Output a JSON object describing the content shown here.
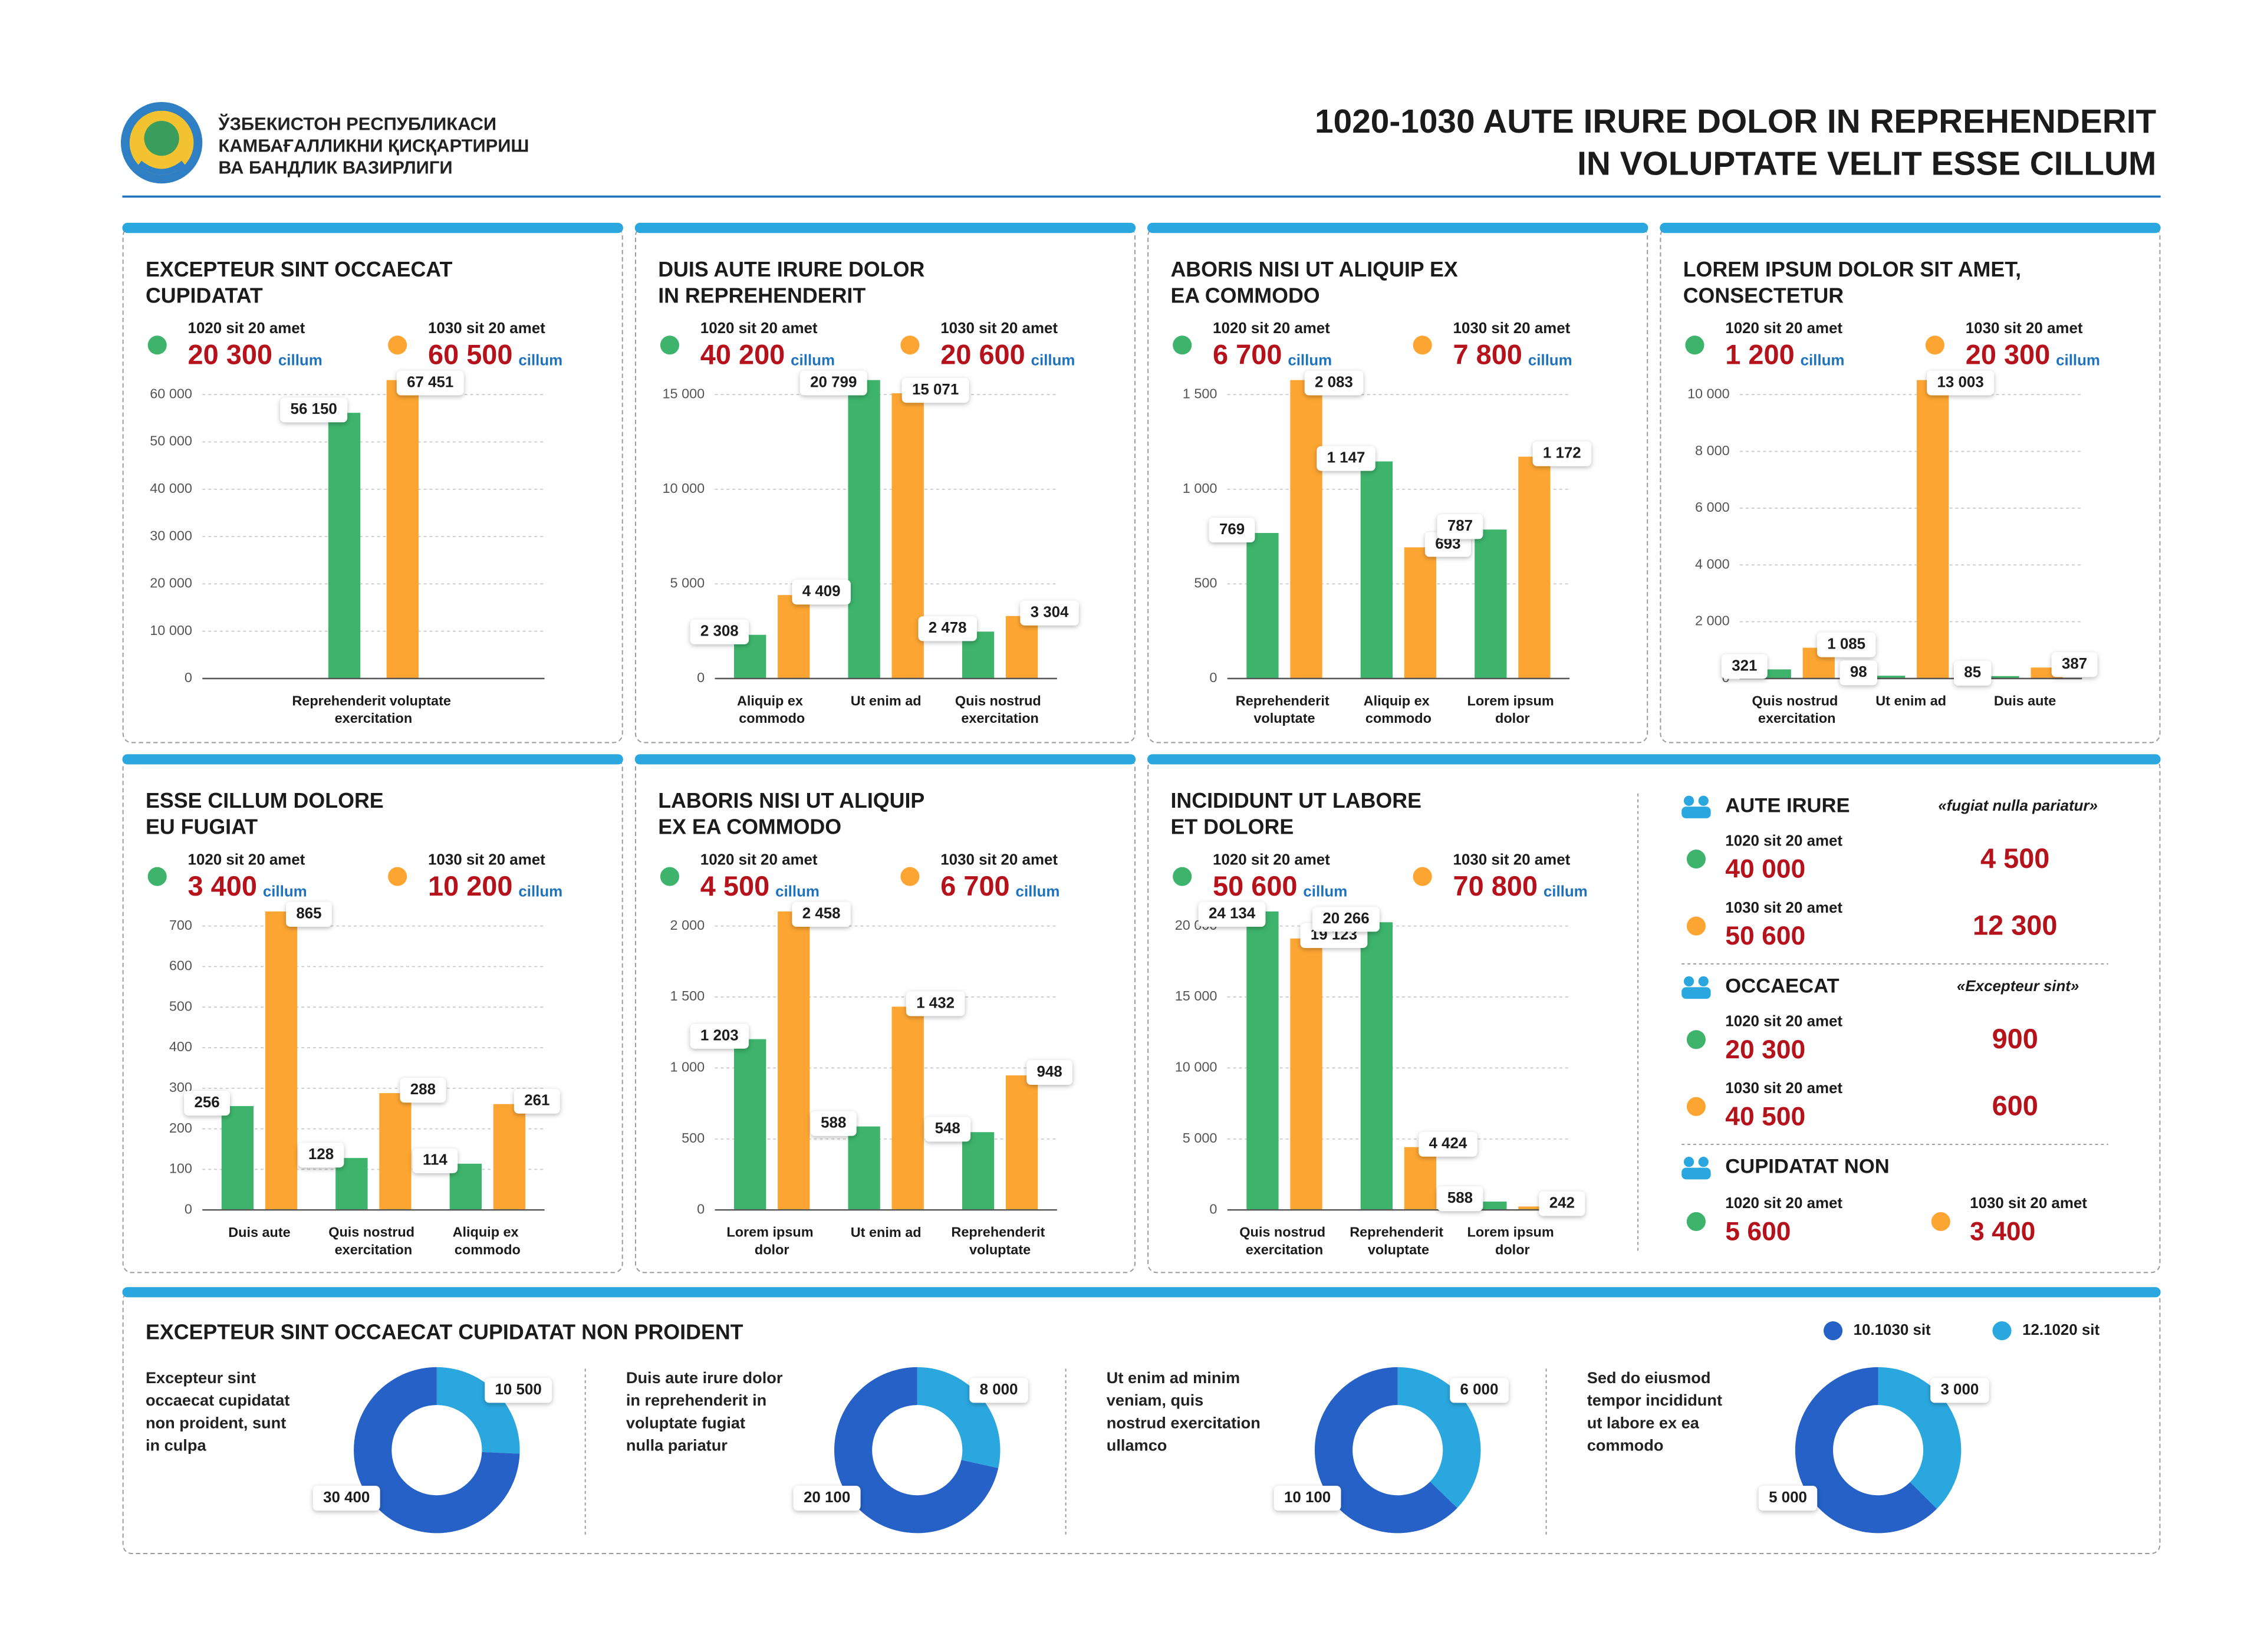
{
  "header": {
    "org_lines": [
      "ЎЗБЕКИСТОН РЕСПУБЛИКАСИ",
      "КАМБАҒАЛЛИКНИ ҚИСҚАРТИРИШ",
      "ВА БАНДЛИК ВАЗИРЛИГИ"
    ],
    "title_lines": [
      "1020-1030 AUTE IRURE DOLOR IN REPREHENDERIT",
      "IN VOLUPTATE VELIT ESSE CILLUM"
    ]
  },
  "chart_data": [
    {
      "type": "bar",
      "title": [
        "EXCEPTEUR SINT OCCAECAT",
        "CUPIDATAT"
      ],
      "unit": "cillum",
      "categories": [
        "Reprehenderit voluptate exercitation"
      ],
      "series": [
        {
          "name": "1020 sit 20 amet",
          "color": "#3db36b",
          "total": "20 300",
          "values": [
            56150
          ],
          "value_labels": [
            "56 150"
          ]
        },
        {
          "name": "1030 sit 20 amet",
          "color": "#fca532",
          "total": "60 500",
          "values": [
            67451
          ],
          "value_labels": [
            "67 451"
          ]
        }
      ],
      "ylim": [
        0,
        60000
      ],
      "yticks": [
        0,
        {
          "value": 10000,
          "label": "10 000"
        },
        {
          "value": 20000,
          "label": "20 000"
        },
        {
          "value": 30000,
          "label": "30 000"
        },
        {
          "value": 40000,
          "label": "40 000"
        },
        {
          "value": 50000,
          "label": "50 000"
        },
        {
          "value": 60000,
          "label": "60 000"
        }
      ],
      "grid": true
    },
    {
      "type": "bar",
      "title": [
        "DUIS AUTE IRURE DOLOR",
        "IN REPREHENDERIT"
      ],
      "unit": "cillum",
      "categories": [
        "Aliquip ex commodo",
        "Ut enim ad",
        "Quis nostrud exercitation"
      ],
      "series": [
        {
          "name": "1020 sit 20 amet",
          "color": "#3db36b",
          "total": "40 200",
          "values": [
            2308,
            20799,
            2478
          ],
          "value_labels": [
            "2 308",
            "20 799",
            "2 478"
          ]
        },
        {
          "name": "1030 sit 20 amet",
          "color": "#fca532",
          "total": "20 600",
          "values": [
            4409,
            15071,
            3304
          ],
          "value_labels": [
            "4 409",
            "15 071",
            "3 304"
          ]
        }
      ],
      "ylim": [
        0,
        15000
      ],
      "yticks": [
        0,
        {
          "value": 5000,
          "label": "5 000"
        },
        {
          "value": 10000,
          "label": "10 000"
        },
        {
          "value": 15000,
          "label": "15 000"
        }
      ],
      "grid": true
    },
    {
      "type": "bar",
      "title": [
        "ABORIS NISI UT ALIQUIP EX",
        "EA COMMODO"
      ],
      "unit": "cillum",
      "categories": [
        "Reprehenderit voluptate",
        "Aliquip ex commodo",
        "Lorem ipsum dolor"
      ],
      "series": [
        {
          "name": "1020 sit 20 amet",
          "color": "#3db36b",
          "total": "6 700",
          "values": [
            769,
            1147,
            787
          ],
          "value_labels": [
            "769",
            "1 147",
            "787"
          ]
        },
        {
          "name": "1030 sit 20 amet",
          "color": "#fca532",
          "total": "7 800",
          "values": [
            2083,
            693,
            1172
          ],
          "value_labels": [
            "2 083",
            "693",
            "1 172"
          ]
        }
      ],
      "ylim": [
        0,
        1500
      ],
      "yticks": [
        0,
        500,
        {
          "value": 1000,
          "label": "1 000"
        },
        {
          "value": 1500,
          "label": "1 500"
        }
      ],
      "grid": true
    },
    {
      "type": "bar",
      "title": [
        "LOREM IPSUM DOLOR SIT AMET,",
        "CONSECTETUR"
      ],
      "unit": "cillum",
      "categories": [
        "Quis nostrud exercitation",
        "Ut enim ad",
        "Duis aute"
      ],
      "series": [
        {
          "name": "1020 sit 20 amet",
          "color": "#3db36b",
          "total": "1 200",
          "values": [
            321,
            98,
            85
          ],
          "value_labels": [
            "321",
            "98",
            "85"
          ]
        },
        {
          "name": "1030 sit 20 amet",
          "color": "#fca532",
          "total": "20 300",
          "values": [
            1085,
            13003,
            387
          ],
          "value_labels": [
            "1 085",
            "13 003",
            "387"
          ]
        }
      ],
      "ylim": [
        0,
        10000
      ],
      "yticks": [
        0,
        {
          "value": 2000,
          "label": "2 000"
        },
        {
          "value": 4000,
          "label": "4 000"
        },
        {
          "value": 6000,
          "label": "6 000"
        },
        {
          "value": 8000,
          "label": "8 000"
        },
        {
          "value": 10000,
          "label": "10 000"
        }
      ],
      "grid": true
    },
    {
      "type": "bar",
      "title": [
        "ESSE CILLUM DOLORE",
        "EU FUGIAT"
      ],
      "unit": "cillum",
      "categories": [
        "Duis aute",
        "Quis nostrud exercitation",
        "Aliquip ex commodo"
      ],
      "series": [
        {
          "name": "1020 sit 20 amet",
          "color": "#3db36b",
          "total": "3 400",
          "values": [
            256,
            128,
            114
          ],
          "value_labels": [
            "256",
            "128",
            "114"
          ]
        },
        {
          "name": "1030 sit 20 amet",
          "color": "#fca532",
          "total": "10 200",
          "values": [
            865,
            288,
            261
          ],
          "value_labels": [
            "865",
            "288",
            "261"
          ]
        }
      ],
      "ylim": [
        0,
        700
      ],
      "yticks": [
        0,
        100,
        200,
        300,
        400,
        500,
        600,
        700
      ],
      "grid": true
    },
    {
      "type": "bar",
      "title": [
        "LABORIS NISI UT ALIQUIP",
        "EX EA COMMODO"
      ],
      "unit": "cillum",
      "categories": [
        "Lorem ipsum dolor",
        "Ut enim ad",
        "Reprehenderit voluptate"
      ],
      "series": [
        {
          "name": "1020 sit 20 amet",
          "color": "#3db36b",
          "total": "4 500",
          "values": [
            1203,
            588,
            548
          ],
          "value_labels": [
            "1 203",
            "588",
            "548"
          ]
        },
        {
          "name": "1030 sit 20 amet",
          "color": "#fca532",
          "total": "6 700",
          "values": [
            2458,
            1432,
            948
          ],
          "value_labels": [
            "2 458",
            "1 432",
            "948"
          ]
        }
      ],
      "ylim": [
        0,
        2000
      ],
      "yticks": [
        0,
        500,
        {
          "value": 1000,
          "label": "1 000"
        },
        {
          "value": 1500,
          "label": "1 500"
        },
        {
          "value": 2000,
          "label": "2 000"
        }
      ],
      "grid": true
    },
    {
      "type": "bar",
      "title": [
        "INCIDIDUNT UT LABORE",
        "ET DOLORE"
      ],
      "unit": "cillum",
      "categories": [
        "Quis nostrud exercitation",
        "Reprehenderit voluptate",
        "Lorem ipsum dolor"
      ],
      "series": [
        {
          "name": "1020 sit 20 amet",
          "color": "#3db36b",
          "total": "50 600",
          "values": [
            24134,
            20266,
            588
          ],
          "value_labels": [
            "24 134",
            "20 266",
            "588"
          ]
        },
        {
          "name": "1030 sit 20 amet",
          "color": "#fca532",
          "total": "70 800",
          "values": [
            19123,
            4424,
            242
          ],
          "value_labels": [
            "19 123",
            "4 424",
            "242"
          ]
        }
      ],
      "ylim": [
        0,
        20000
      ],
      "yticks": [
        0,
        {
          "value": 5000,
          "label": "5 000"
        },
        {
          "value": 10000,
          "label": "10 000"
        },
        {
          "value": 15000,
          "label": "15 000"
        },
        {
          "value": 20000,
          "label": "20 000"
        }
      ],
      "grid": true
    },
    {
      "type": "donut",
      "description": [
        "Excepteur sint",
        "occaecat cupidatat",
        "non proident, sunt",
        "in culpa"
      ],
      "categories": [
        "10.1030 sit",
        "12.1020 sit"
      ],
      "colors": [
        "#2561c6",
        "#2aa7df"
      ],
      "values": [
        30400,
        10500
      ],
      "value_labels": [
        "30 400",
        "10 500"
      ]
    },
    {
      "type": "donut",
      "description": [
        "Duis aute irure dolor",
        "in reprehenderit in",
        "voluptate fugiat",
        "nulla pariatur"
      ],
      "categories": [
        "10.1030 sit",
        "12.1020 sit"
      ],
      "colors": [
        "#2561c6",
        "#2aa7df"
      ],
      "values": [
        20100,
        8000
      ],
      "value_labels": [
        "20 100",
        "8 000"
      ]
    },
    {
      "type": "donut",
      "description": [
        "Ut enim ad minim",
        "veniam, quis",
        "nostrud exercitation",
        "ullamco"
      ],
      "categories": [
        "10.1030 sit",
        "12.1020 sit"
      ],
      "colors": [
        "#2561c6",
        "#2aa7df"
      ],
      "values": [
        10100,
        6000
      ],
      "value_labels": [
        "10 100",
        "6 000"
      ]
    },
    {
      "type": "donut",
      "description": [
        "Sed do eiusmod",
        "tempor incididunt",
        "ut labore ex ea",
        "commodo"
      ],
      "categories": [
        "10.1030 sit",
        "12.1020 sit"
      ],
      "colors": [
        "#2561c6",
        "#2aa7df"
      ],
      "values": [
        5000,
        3000
      ],
      "value_labels": [
        "5 000",
        "3 000"
      ]
    }
  ],
  "donut_section": {
    "title": "EXCEPTEUR SINT OCCAECAT CUPIDATAT NON PROIDENT"
  },
  "stats": {
    "groups": [
      {
        "heading": "AUTE IRURE",
        "quote": "«fugiat nulla pariatur»",
        "rows": [
          {
            "name": "1020 sit 20 amet",
            "value": "40 000",
            "side": "4 500"
          },
          {
            "name": "1030 sit 20 amet",
            "value": "50 600",
            "side": "12 300"
          }
        ]
      },
      {
        "heading": "OCCAECAT",
        "quote": "«Excepteur sint»",
        "rows": [
          {
            "name": "1020 sit 20 amet",
            "value": "20 300",
            "side": "900"
          },
          {
            "name": "1030 sit 20 amet",
            "value": "40 500",
            "side": "600"
          }
        ]
      },
      {
        "heading": "CUPIDATAT NON",
        "rows": [
          {
            "name": "1020 sit 20 amet",
            "value": "5 600"
          },
          {
            "name": "1030 sit 20 amet",
            "value": "3 400"
          }
        ]
      }
    ]
  }
}
